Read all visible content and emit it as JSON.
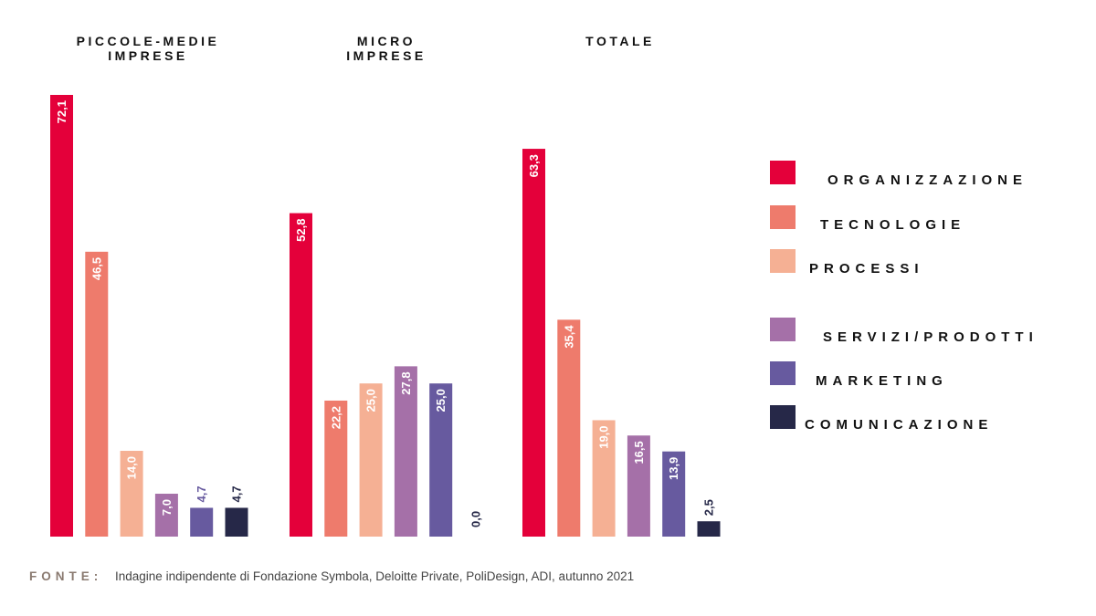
{
  "chart_data": {
    "type": "bar",
    "ylim": [
      0,
      72.1
    ],
    "groups": [
      {
        "title_lines": [
          "PICCOLE-MEDIE",
          "IMPRESE"
        ],
        "values": [
          72.1,
          46.5,
          14.0,
          7.0,
          4.7,
          4.7
        ],
        "labels": [
          "72,1",
          "46,5",
          "14,0",
          "7,0",
          "4,7",
          "4,7"
        ]
      },
      {
        "title_lines": [
          "MICRO",
          "IMPRESE"
        ],
        "values": [
          52.8,
          22.2,
          25.0,
          27.8,
          25.0,
          0.0
        ],
        "labels": [
          "52,8",
          "22,2",
          "25,0",
          "27,8",
          "25,0",
          "0,0"
        ]
      },
      {
        "title_lines": [
          "TOTALE"
        ],
        "values": [
          63.3,
          35.4,
          19.0,
          16.5,
          13.9,
          2.5
        ],
        "labels": [
          "63,3",
          "35,4",
          "19,0",
          "16,5",
          "13,9",
          "2,5"
        ]
      }
    ],
    "series": [
      {
        "name": "ORGANIZZAZIONE",
        "color": "#e4003a"
      },
      {
        "name": "TECNOLOGIE",
        "color": "#ee7b6c"
      },
      {
        "name": "PROCESSI",
        "color": "#f5b094"
      },
      {
        "name": "SERVIZI/PRODOTTI",
        "color": "#a570a8"
      },
      {
        "name": "MARKETING",
        "color": "#675a9f"
      },
      {
        "name": "COMUNICAZIONE",
        "color": "#262848"
      }
    ],
    "legend": "right",
    "grid": false
  },
  "source": {
    "label": "FONTE:",
    "text": "Indagine indipendente di Fondazione Symbola, Deloitte Private, PoliDesign, ADI, autunno 2021"
  }
}
